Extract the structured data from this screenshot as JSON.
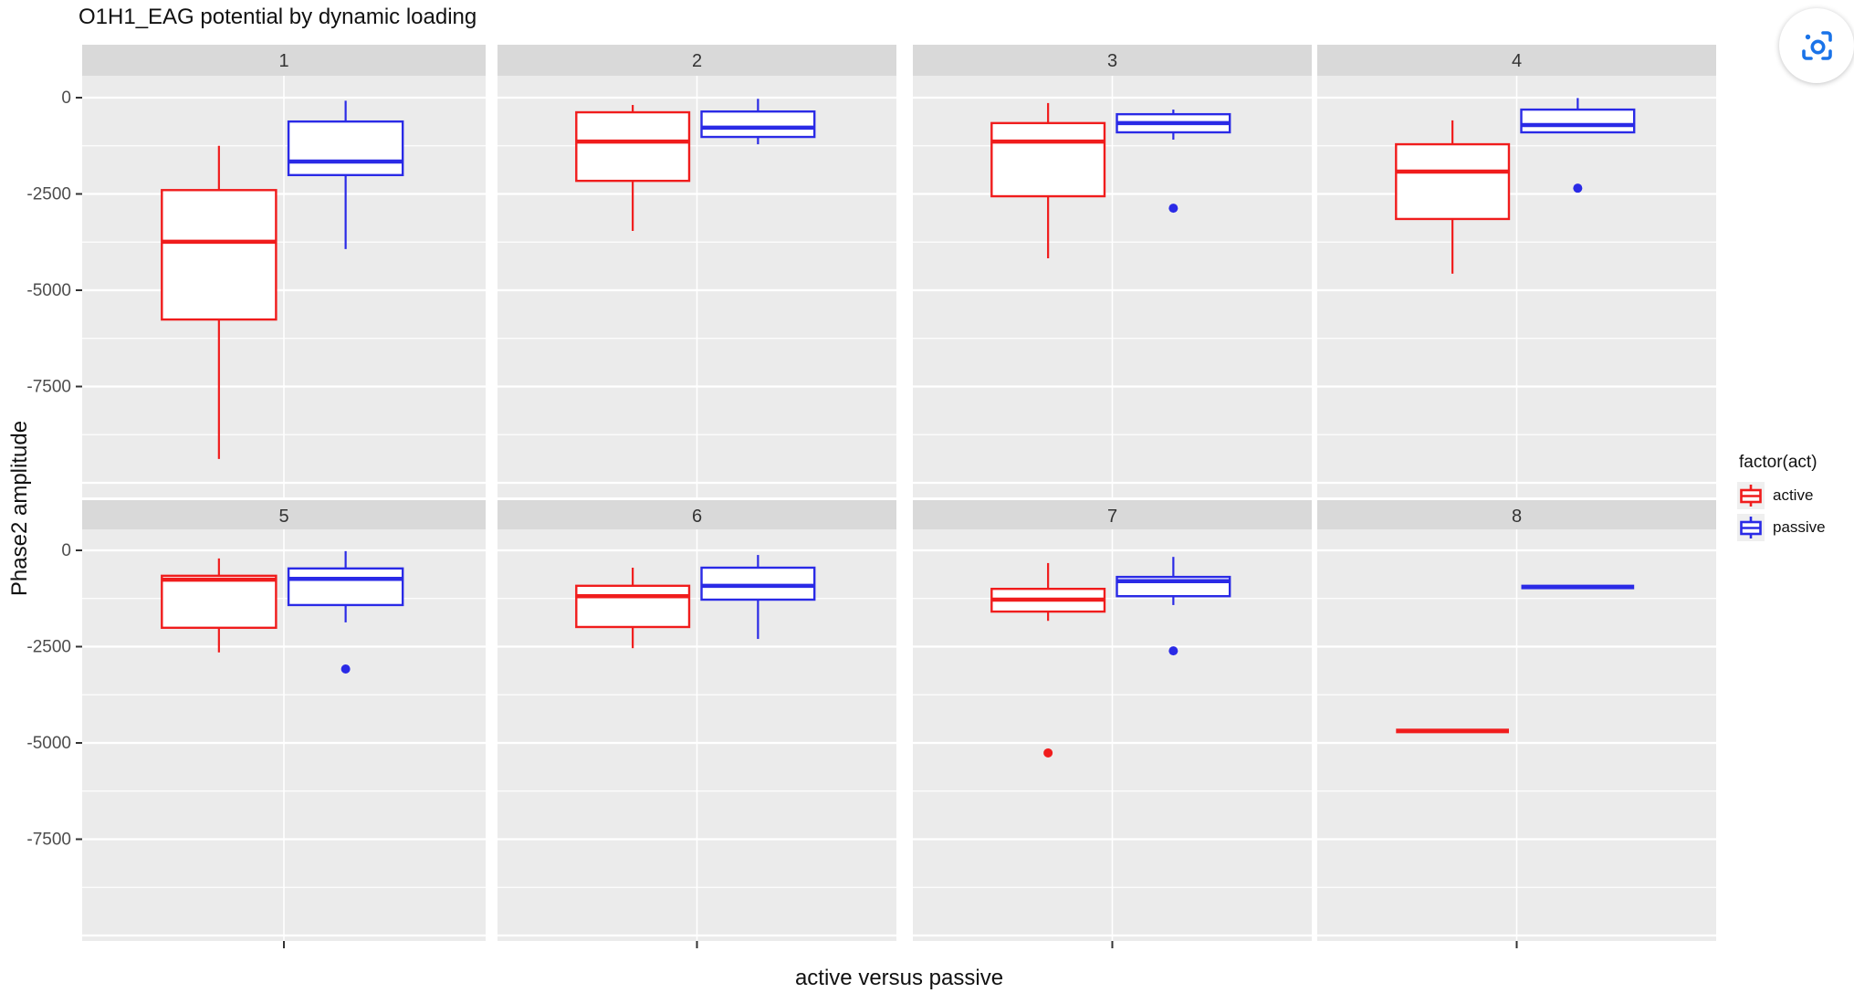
{
  "chart_data": {
    "type": "boxplot",
    "title": "O1H1_EAG potential by dynamic loading",
    "xlabel": "active versus passive",
    "ylabel": "Phase2 amplitude",
    "facet_variable_values": [
      "1",
      "2",
      "3",
      "4",
      "5",
      "6",
      "7",
      "8"
    ],
    "legend": {
      "title": "factor(act)",
      "position": "right",
      "items": [
        {
          "label": "active",
          "color": "#F01C1C"
        },
        {
          "label": "passive",
          "color": "#2A2AE6"
        }
      ]
    },
    "y_ticks": [
      {
        "label": "0",
        "value": 0
      },
      {
        "label": "-2500",
        "value": -2500
      },
      {
        "label": "-5000",
        "value": -5000
      },
      {
        "label": "-7500",
        "value": -7500
      }
    ],
    "ylim": [
      -10380,
      570
    ],
    "grid": {
      "major": [
        0,
        -2500,
        -5000,
        -7500,
        -10000
      ],
      "minor": [
        -1250,
        -3750,
        -6250,
        -8750
      ]
    },
    "panel_bg": "#EBEBEB",
    "strip_bg": "#D9D9D9",
    "facets": [
      {
        "label": "1",
        "boxes": [
          {
            "group": "active",
            "min": -9380,
            "q1": -5760,
            "median": -3740,
            "q3": -2400,
            "max": -1250,
            "outliers": []
          },
          {
            "group": "passive",
            "min": -3930,
            "q1": -2010,
            "median": -1660,
            "q3": -620,
            "max": -80,
            "outliers": []
          }
        ]
      },
      {
        "label": "2",
        "boxes": [
          {
            "group": "active",
            "min": -3460,
            "q1": -2160,
            "median": -1140,
            "q3": -380,
            "max": -190,
            "outliers": []
          },
          {
            "group": "passive",
            "min": -1210,
            "q1": -1020,
            "median": -780,
            "q3": -360,
            "max": -30,
            "outliers": []
          }
        ]
      },
      {
        "label": "3",
        "boxes": [
          {
            "group": "active",
            "min": -4170,
            "q1": -2560,
            "median": -1140,
            "q3": -660,
            "max": -140,
            "outliers": []
          },
          {
            "group": "passive",
            "min": -1090,
            "q1": -900,
            "median": -660,
            "q3": -430,
            "max": -310,
            "outliers": [
              -2870
            ]
          }
        ]
      },
      {
        "label": "4",
        "boxes": [
          {
            "group": "active",
            "min": -4570,
            "q1": -3150,
            "median": -1920,
            "q3": -1210,
            "max": -590,
            "outliers": []
          },
          {
            "group": "passive",
            "min": -900,
            "q1": -900,
            "median": -710,
            "q3": -310,
            "max": -10,
            "outliers": [
              -2350
            ]
          }
        ]
      },
      {
        "label": "5",
        "boxes": [
          {
            "group": "active",
            "min": -2650,
            "q1": -2010,
            "median": -760,
            "q3": -660,
            "max": -210,
            "outliers": []
          },
          {
            "group": "passive",
            "min": -1870,
            "q1": -1420,
            "median": -740,
            "q3": -470,
            "max": -20,
            "outliers": [
              -3080
            ]
          }
        ]
      },
      {
        "label": "6",
        "boxes": [
          {
            "group": "active",
            "min": -2540,
            "q1": -1990,
            "median": -1190,
            "q3": -920,
            "max": -450,
            "outliers": []
          },
          {
            "group": "passive",
            "min": -2300,
            "q1": -1280,
            "median": -920,
            "q3": -450,
            "max": -120,
            "outliers": []
          }
        ]
      },
      {
        "label": "7",
        "boxes": [
          {
            "group": "active",
            "min": -1830,
            "q1": -1590,
            "median": -1280,
            "q3": -1000,
            "max": -330,
            "outliers": [
              -5260
            ]
          },
          {
            "group": "passive",
            "min": -1420,
            "q1": -1190,
            "median": -800,
            "q3": -690,
            "max": -170,
            "outliers": [
              -2610
            ]
          }
        ]
      },
      {
        "label": "8",
        "boxes": [
          {
            "group": "active",
            "min": -4690,
            "q1": -4690,
            "median": -4690,
            "q3": -4690,
            "max": -4690,
            "outliers": []
          },
          {
            "group": "passive",
            "min": -950,
            "q1": -950,
            "median": -950,
            "q3": -950,
            "max": -950,
            "outliers": []
          }
        ]
      }
    ]
  },
  "ui": {
    "capture_button": {
      "name": "screenshot-capture",
      "color": "#1A73E8"
    }
  }
}
